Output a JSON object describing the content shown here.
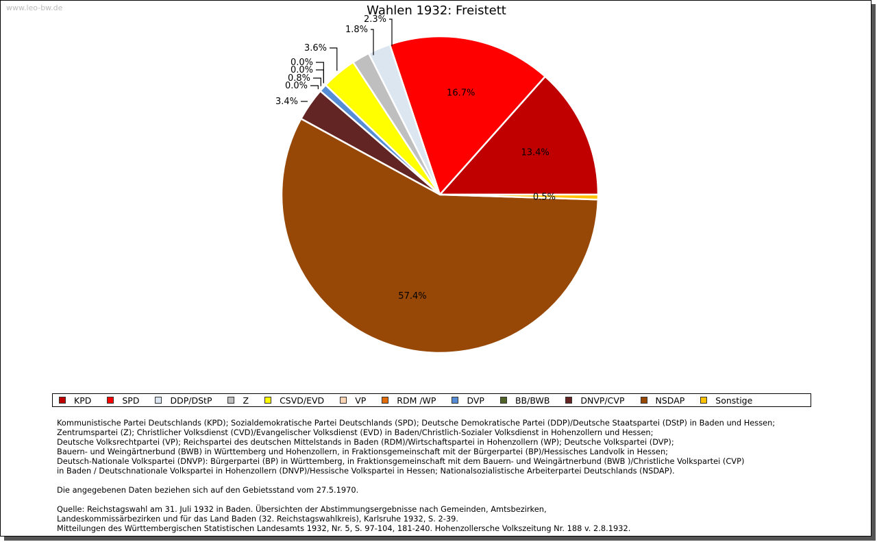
{
  "watermark": "www.leo-bw.de",
  "chart_data": {
    "type": "pie",
    "title": "Wahlen 1932: Freistett",
    "start_angle_deg": 0,
    "direction": "counterclockwise",
    "slices": [
      {
        "name": "KPD",
        "value": 13.4,
        "label": "13.4%",
        "color": "#C00000"
      },
      {
        "name": "SPD",
        "value": 16.7,
        "label": "16.7%",
        "color": "#FF0000"
      },
      {
        "name": "DDP/DStP",
        "value": 2.3,
        "label": "2.3%",
        "color": "#DCE6F1"
      },
      {
        "name": "Z",
        "value": 1.8,
        "label": "1.8%",
        "color": "#BFBFBF"
      },
      {
        "name": "CSVD/EVD",
        "value": 3.6,
        "label": "3.6%",
        "color": "#FFFF00"
      },
      {
        "name": "VP",
        "value": 0.0,
        "label": "0.0%",
        "color": "#FCD5B4"
      },
      {
        "name": "RDM /WP",
        "value": 0.0,
        "label": "0.0%",
        "color": "#E26B0A"
      },
      {
        "name": "DVP",
        "value": 0.8,
        "label": "0.8%",
        "color": "#558ED5"
      },
      {
        "name": "BB/BWB",
        "value": 0.0,
        "label": "0.0%",
        "color": "#4F6228"
      },
      {
        "name": "DNVP/CVP",
        "value": 3.4,
        "label": "3.4%",
        "color": "#632523"
      },
      {
        "name": "NSDAP",
        "value": 57.4,
        "label": "57.4%",
        "color": "#974806"
      },
      {
        "name": "Sonstige",
        "value": 0.5,
        "label": "0.5%",
        "color": "#FFC000"
      }
    ],
    "legend_position": "bottom"
  },
  "notes": {
    "parties": [
      "Kommunistische Partei Deutschlands (KPD); Sozialdemokratische Partei Deutschlands (SPD); Deutsche Demokratische Partei (DDP)/Deutsche Staatspartei (DStP) in Baden und Hessen;",
      "Zentrumspartei (Z); Christlicher Volksdienst (CVD)/Evangelischer Volksdienst (EVD) in Baden/Christlich-Sozialer Volksdienst in Hohenzollern und Hessen;",
      "Deutsche Volksrechtpartei (VP); Reichspartei des deutschen Mittelstands in Baden (RDM)/Wirtschaftspartei in Hohenzollern (WP); Deutsche Volkspartei (DVP);",
      "Bauern- und Weingärtnerbund (BWB) in Württemberg und Hohenzollern, in Fraktionsgemeinschaft mit der Bürgerpartei (BP)/Hessisches Landvolk in Hessen;",
      "Deutsch-Nationale Volkspartei (DNVP): Bürgerpartei (BP) in Württemberg, in Fraktionsgemeinschaft mit dem Bauern- und Weingärtnerbund (BWB )/Christliche Volkspartei (CVP)",
      "in Baden / Deutschnationale Volkspartei in Hohenzollern (DNVP)/Hessische Volkspartei in Hessen; Nationalsozialistische Arbeiterpartei Deutschlands (NSDAP)."
    ],
    "territory": "Die angegebenen Daten beziehen sich auf den Gebietsstand vom 27.5.1970.",
    "source": [
      "Quelle: Reichstagswahl am 31. Juli 1932 in Baden. Übersichten der Abstimmungsergebnisse nach Gemeinden, Amtsbezirken,",
      "Landeskommissärbezirken und für das Land Baden (32. Reichstagswahlkreis), Karlsruhe 1932, S. 2-39.",
      "Mitteilungen des Württembergischen Statistischen Landesamts 1932, Nr. 5, S. 97-104, 181-240. Hohenzollersche Volkszeitung Nr. 188 v. 2.8.1932."
    ]
  }
}
